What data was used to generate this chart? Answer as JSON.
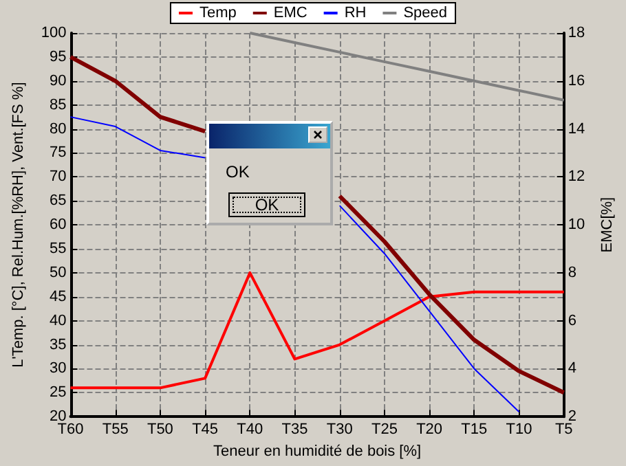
{
  "chart_data": {
    "type": "line",
    "xlabel": "Teneur en humidité de bois [%]",
    "ylabel": "L'Temp. [°C], Rel.Hum.[%RH], Vent.[FS %]",
    "y2label": "EMC[%]",
    "categories": [
      "T60",
      "T55",
      "T50",
      "T45",
      "T40",
      "T35",
      "T30",
      "T25",
      "T20",
      "T15",
      "T10",
      "T5"
    ],
    "series": [
      {
        "name": "Temp",
        "color": "#ff0000",
        "values": [
          26,
          26,
          26,
          28,
          50,
          32,
          35,
          40,
          45,
          46,
          46,
          46
        ]
      },
      {
        "name": "EMC",
        "color": "#800000",
        "axis": "y2",
        "values": [
          17,
          16,
          14.5,
          13.9,
          null,
          null,
          11.2,
          9.3,
          7.1,
          5.2,
          3.9,
          3.0
        ]
      },
      {
        "name": "RH",
        "color": "#0000ff",
        "values": [
          82.5,
          80.5,
          75.5,
          74,
          null,
          null,
          64,
          54,
          42,
          30,
          21,
          null
        ]
      },
      {
        "name": "Speed",
        "color": "#808080",
        "values": [
          null,
          null,
          null,
          null,
          100,
          98,
          96,
          94,
          92,
          90,
          88,
          86
        ]
      }
    ],
    "ylim": [
      20,
      100
    ],
    "yticks": [
      20,
      25,
      30,
      35,
      40,
      45,
      50,
      55,
      60,
      65,
      70,
      75,
      80,
      85,
      90,
      95,
      100
    ],
    "y2lim": [
      2,
      18
    ],
    "y2ticks": [
      2,
      4,
      6,
      8,
      10,
      12,
      14,
      16,
      18
    ],
    "grid": true,
    "legend": "top",
    "marker": "none",
    "line_style": "solid",
    "annotations": [
      "OK",
      "OK"
    ]
  }
}
